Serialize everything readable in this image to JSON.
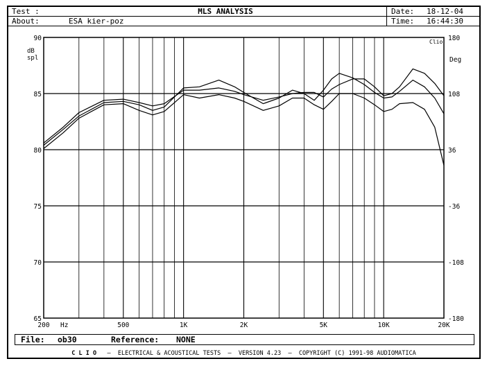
{
  "header": {
    "test_label": "Test :",
    "about_label": "About:",
    "about_value": "ESA kier-poz",
    "title": "MLS ANALYSIS",
    "date_label": "Date:",
    "date_value": "18-12-04",
    "time_label": "Time:",
    "time_value": "16:44:30"
  },
  "file_bar": {
    "file_label": "File:",
    "file_value": "ob30",
    "reference_label": "Reference:",
    "reference_value": "NONE"
  },
  "footer": {
    "brand": "C L I O",
    "text": "–  ELECTRICAL & ACOUSTICAL TESTS  –  VERSION 4.23  –  COPYRIGHT (C) 1991-98 AUDIOMATICA"
  },
  "chart_data": {
    "type": "line",
    "x_scale": "log",
    "xlim": [
      200,
      20000
    ],
    "ylim": [
      65,
      90
    ],
    "y2lim": [
      -180,
      180
    ],
    "ylabel": "dB\nspl",
    "y2label": "Deg",
    "y2_top_note": "Clio",
    "x_unit_label": "Hz",
    "x_ticks": [
      {
        "value": 200,
        "label": "200"
      },
      {
        "value": 500,
        "label": "500"
      },
      {
        "value": 1000,
        "label": "1K"
      },
      {
        "value": 2000,
        "label": "2K"
      },
      {
        "value": 5000,
        "label": "5K"
      },
      {
        "value": 10000,
        "label": "10K"
      },
      {
        "value": 20000,
        "label": "20K"
      }
    ],
    "y_ticks": [
      90,
      85,
      80,
      75,
      70,
      65
    ],
    "y2_ticks": [
      180,
      108,
      36,
      -36,
      -108,
      -180
    ],
    "grid": true,
    "series": [
      {
        "x": [
          200,
          250,
          300,
          400,
          500,
          600,
          700,
          800,
          1000,
          1200,
          1500,
          1800,
          2000,
          2500,
          3000,
          3500,
          4000,
          4500,
          5000,
          5500,
          6000,
          7000,
          8000,
          9000,
          10000,
          11000,
          12000,
          14000,
          16000,
          18000,
          20000
        ],
        "y": [
          80.6,
          82.0,
          83.3,
          84.4,
          84.5,
          84.2,
          83.9,
          84.1,
          85.3,
          85.3,
          85.5,
          85.2,
          84.9,
          84.4,
          84.7,
          85.0,
          85.1,
          85.1,
          84.7,
          85.4,
          85.8,
          86.3,
          86.3,
          85.6,
          84.8,
          85.0,
          85.6,
          87.2,
          86.8,
          85.9,
          84.8
        ]
      },
      {
        "x": [
          200,
          250,
          300,
          400,
          500,
          600,
          700,
          800,
          1000,
          1200,
          1500,
          1800,
          2000,
          2500,
          3000,
          3500,
          4000,
          4500,
          5000,
          5500,
          6000,
          7000,
          8000,
          9000,
          10000,
          11000,
          12000,
          14000,
          16000,
          18000,
          20000
        ],
        "y": [
          80.4,
          81.8,
          83.0,
          84.2,
          84.3,
          84.0,
          83.5,
          83.8,
          85.5,
          85.6,
          86.2,
          85.6,
          85.1,
          84.1,
          84.6,
          85.3,
          85.0,
          84.4,
          85.3,
          86.3,
          86.8,
          86.4,
          85.8,
          85.1,
          84.6,
          84.7,
          85.2,
          86.2,
          85.6,
          84.6,
          83.2
        ]
      },
      {
        "x": [
          200,
          250,
          300,
          400,
          500,
          600,
          700,
          800,
          1000,
          1200,
          1500,
          1800,
          2000,
          2500,
          3000,
          3500,
          4000,
          4500,
          5000,
          5500,
          6000,
          7000,
          8000,
          9000,
          10000,
          11000,
          12000,
          14000,
          16000,
          18000,
          20000
        ],
        "y": [
          80.1,
          81.5,
          82.8,
          84.0,
          84.1,
          83.5,
          83.1,
          83.4,
          84.9,
          84.6,
          84.9,
          84.6,
          84.3,
          83.5,
          83.9,
          84.6,
          84.6,
          84.0,
          83.6,
          84.3,
          85.0,
          85.0,
          84.6,
          84.0,
          83.4,
          83.6,
          84.1,
          84.2,
          83.6,
          82.0,
          78.6
        ]
      }
    ]
  }
}
